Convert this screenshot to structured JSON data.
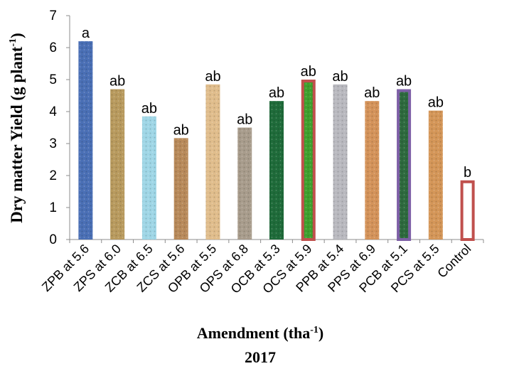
{
  "chart_data": {
    "type": "bar",
    "title": "2017",
    "xlabel": "Amendment (tha",
    "xlabel_sup": "-1",
    "xlabel_tail": ")",
    "ylabel": "Dry matter Yield (g plant",
    "ylabel_sup": "-1",
    "ylabel_tail": ")",
    "ylim": [
      0,
      7
    ],
    "yticks": [
      "0",
      "1",
      "2",
      "3",
      "4",
      "5",
      "6",
      "7"
    ],
    "grid": false,
    "categories": [
      "ZPB at 5.6",
      "ZPS at 6.0",
      "ZCB at 6.5",
      "ZCS at 5.6",
      "OPB at 5.5",
      "OPS at 6.8",
      "OCB at 5.3",
      "OCS at 5.9",
      "PPB at 5.4",
      "PPS at 6.9",
      "PCB at 5.1",
      "PCS at 5.5",
      "Control"
    ],
    "values": [
      6.2,
      4.7,
      3.85,
      3.17,
      4.85,
      3.5,
      4.33,
      5.0,
      4.85,
      4.33,
      4.7,
      4.03,
      1.85
    ],
    "letters": [
      "a",
      "ab",
      "ab",
      "ab",
      "ab",
      "ab",
      "ab",
      "ab",
      "ab",
      "ab",
      "ab",
      "ab",
      "b"
    ],
    "bar_colors": [
      "#4a6fb5",
      "#b89a5e",
      "#9fd6e6",
      "#b88a5a",
      "#e0bd8c",
      "#a89c8c",
      "#1f6b3a",
      "#3fa02e",
      "#b9b9bf",
      "#d4935a",
      "#2e6a3e",
      "#d49658",
      "#ffffff"
    ],
    "bar_outlines": [
      "",
      "",
      "",
      "",
      "",
      "",
      "",
      "#c0504d",
      "",
      "",
      "#7d5fa6",
      "",
      "#c0504d"
    ]
  }
}
